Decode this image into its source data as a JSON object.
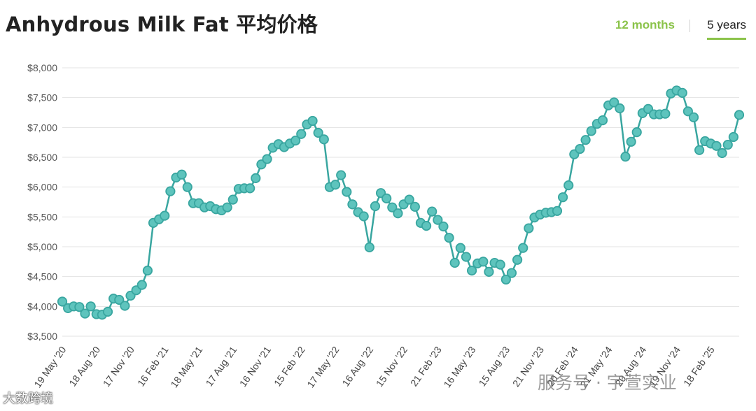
{
  "header": {
    "title": "Anhydrous Milk Fat 平均价格",
    "tabs": [
      {
        "label": "12 months",
        "active": false
      },
      {
        "label": "5 years",
        "active": true
      }
    ]
  },
  "watermarks": {
    "left": "大数跨境",
    "right": "服务号 · 宇萱实业"
  },
  "colors": {
    "line": "#39a6a0",
    "marker_fill": "#5ec4bd",
    "grid": "#e3e3e3",
    "accent": "#8bc34a"
  },
  "chart_data": {
    "type": "line",
    "title": "Anhydrous Milk Fat 平均价格",
    "ylim": [
      3500,
      8000
    ],
    "yticks": [
      3500,
      4000,
      4500,
      5000,
      5500,
      6000,
      6500,
      7000,
      7500,
      8000
    ],
    "ytick_labels": [
      "$3,500",
      "$4,000",
      "$4,500",
      "$5,000",
      "$5,500",
      "$6,000",
      "$6,500",
      "$7,000",
      "$7,500",
      "$8,000"
    ],
    "xtick_labels": [
      {
        "label": "19 May '20",
        "index": 0
      },
      {
        "label": "18 Aug '20",
        "index": 6
      },
      {
        "label": "17 Nov '20",
        "index": 12
      },
      {
        "label": "16 Feb '21",
        "index": 18
      },
      {
        "label": "18 May '21",
        "index": 24
      },
      {
        "label": "17 Aug '21",
        "index": 30
      },
      {
        "label": "16 Nov '21",
        "index": 36
      },
      {
        "label": "15 Feb '22",
        "index": 42
      },
      {
        "label": "17 May '22",
        "index": 48
      },
      {
        "label": "16 Aug '22",
        "index": 54
      },
      {
        "label": "15 Nov '22",
        "index": 60
      },
      {
        "label": "21 Feb '23",
        "index": 66
      },
      {
        "label": "16 May '23",
        "index": 72
      },
      {
        "label": "15 Aug '23",
        "index": 78
      },
      {
        "label": "21 Nov '23",
        "index": 84
      },
      {
        "label": "20 Feb '24",
        "index": 90
      },
      {
        "label": "21 May '24",
        "index": 96
      },
      {
        "label": "20 Aug '24",
        "index": 102
      },
      {
        "label": "19 Nov '24",
        "index": 108
      },
      {
        "label": "18 Feb '25",
        "index": 114
      }
    ],
    "values": [
      4080,
      3970,
      4000,
      3990,
      3880,
      4000,
      3870,
      3860,
      3910,
      4130,
      4110,
      4010,
      4180,
      4270,
      4360,
      4600,
      5400,
      5460,
      5520,
      5930,
      6160,
      6210,
      6000,
      5730,
      5730,
      5660,
      5680,
      5630,
      5610,
      5660,
      5790,
      5970,
      5980,
      5980,
      6150,
      6380,
      6470,
      6660,
      6720,
      6670,
      6730,
      6780,
      6890,
      7050,
      7110,
      6910,
      6800,
      6000,
      6040,
      6200,
      5920,
      5710,
      5580,
      5510,
      4990,
      5680,
      5900,
      5810,
      5660,
      5560,
      5710,
      5790,
      5670,
      5400,
      5350,
      5590,
      5450,
      5340,
      5150,
      4730,
      4980,
      4830,
      4600,
      4720,
      4750,
      4580,
      4730,
      4700,
      4450,
      4560,
      4780,
      4980,
      5310,
      5490,
      5540,
      5570,
      5580,
      5600,
      5830,
      6030,
      6550,
      6640,
      6790,
      6940,
      7060,
      7120,
      7370,
      7420,
      7320,
      6510,
      6760,
      6920,
      7240,
      7310,
      7220,
      7220,
      7230,
      7570,
      7620,
      7580,
      7270,
      7170,
      6620,
      6770,
      6730,
      6690,
      6570,
      6710,
      6840,
      7210
    ]
  }
}
